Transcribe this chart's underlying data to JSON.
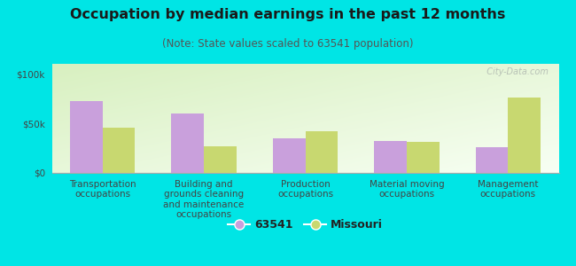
{
  "title": "Occupation by median earnings in the past 12 months",
  "subtitle": "(Note: State values scaled to 63541 population)",
  "categories": [
    "Transportation\noccupations",
    "Building and\ngrounds cleaning\nand maintenance\noccupations",
    "Production\noccupations",
    "Material moving\noccupations",
    "Management\noccupations"
  ],
  "values_63541": [
    72000,
    60000,
    35000,
    32000,
    26000
  ],
  "values_missouri": [
    46000,
    27000,
    42000,
    31000,
    76000
  ],
  "color_63541": "#c9a0dc",
  "color_missouri": "#c8d870",
  "background_outer": "#00e5e5",
  "ylim": [
    0,
    110000
  ],
  "yticks": [
    0,
    50000,
    100000
  ],
  "ytick_labels": [
    "$0",
    "$50k",
    "$100k"
  ],
  "watermark": "  City-Data.com",
  "legend_label_1": "63541",
  "legend_label_2": "Missouri",
  "title_fontsize": 11.5,
  "subtitle_fontsize": 8.5,
  "tick_fontsize": 7.5,
  "legend_fontsize": 9,
  "bar_width": 0.32
}
